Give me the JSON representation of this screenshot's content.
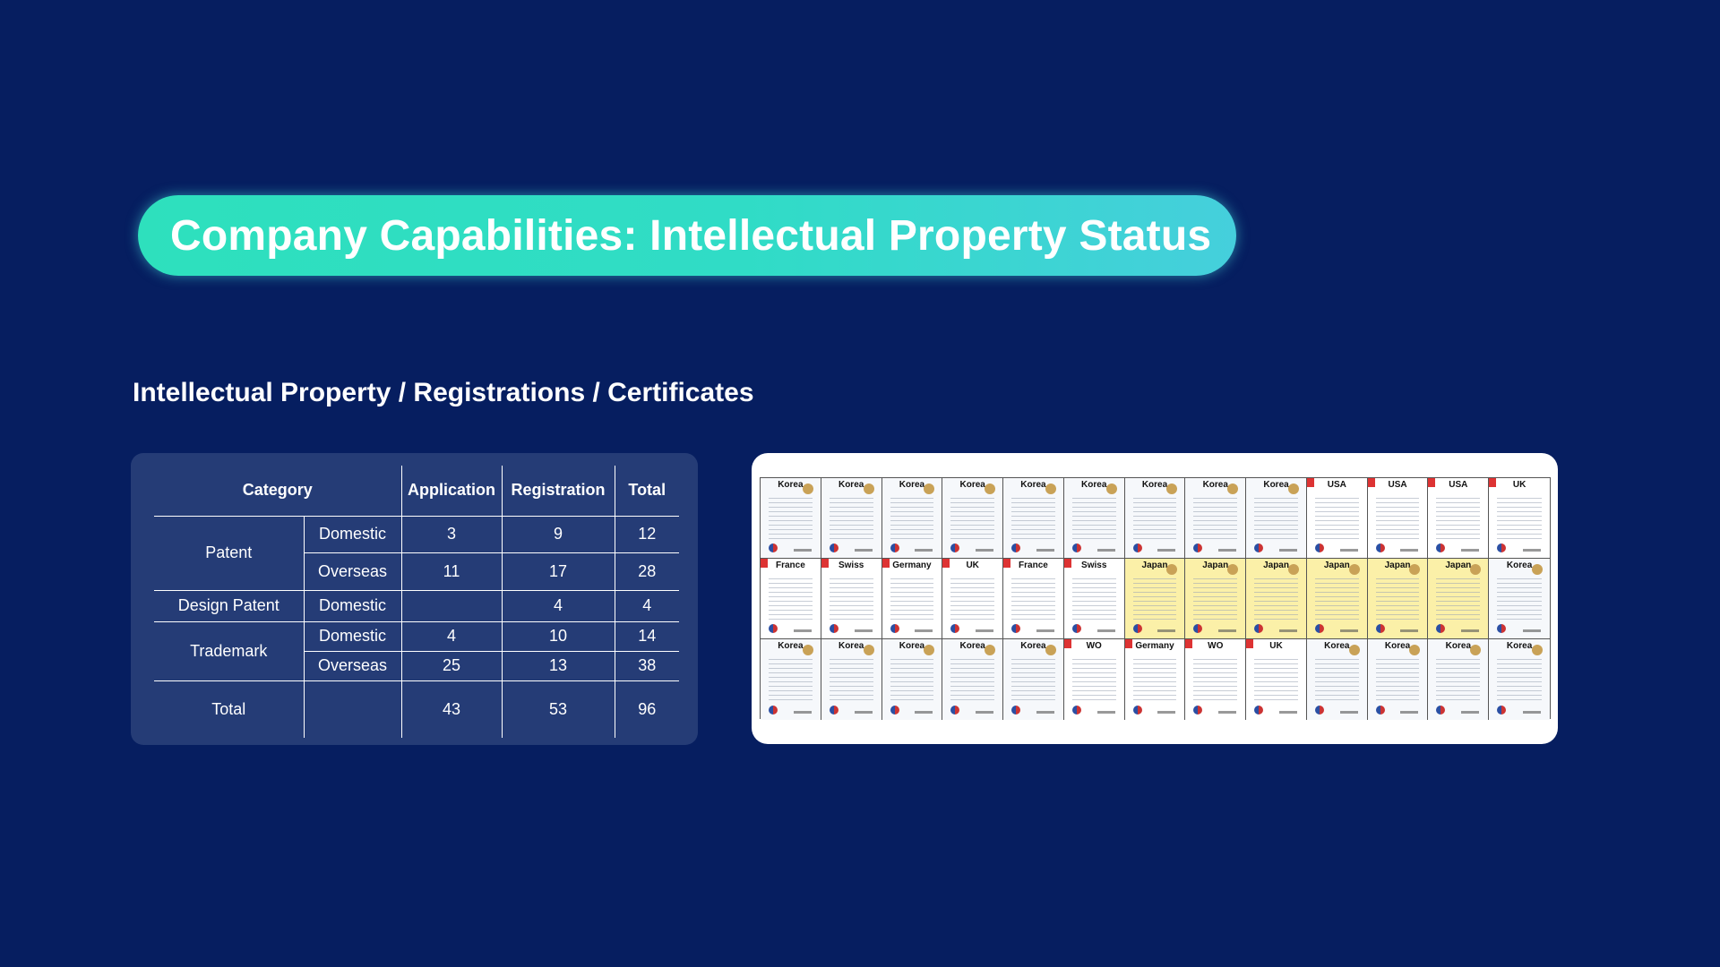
{
  "title": "Company Capabilities: Intellectual Property Status",
  "subtitle": "Intellectual Property / Registrations / Certificates",
  "table": {
    "headers": {
      "category": "Category",
      "application": "Application",
      "registration": "Registration",
      "total": "Total"
    },
    "rows": {
      "patent_label": "Patent",
      "patent_domestic": {
        "sub": "Domestic",
        "application": "3",
        "registration": "9",
        "total": "12"
      },
      "patent_overseas": {
        "sub": "Overseas",
        "application": "11",
        "registration": "17",
        "total": "28"
      },
      "design_label": "Design Patent",
      "design_domestic": {
        "sub": "Domestic",
        "application": "",
        "registration": "4",
        "total": "4"
      },
      "trademark_label": "Trademark",
      "trademark_domestic": {
        "sub": "Domestic",
        "application": "4",
        "registration": "10",
        "total": "14"
      },
      "trademark_overseas": {
        "sub": "Overseas",
        "application": "25",
        "registration": "13",
        "total": "38"
      },
      "total": {
        "label": "Total",
        "application": "43",
        "registration": "53",
        "total": "96"
      }
    }
  },
  "certificates": [
    {
      "country": "Korea",
      "style": "light"
    },
    {
      "country": "Korea",
      "style": "light"
    },
    {
      "country": "Korea",
      "style": "light"
    },
    {
      "country": "Korea",
      "style": "light"
    },
    {
      "country": "Korea",
      "style": "light"
    },
    {
      "country": "Korea",
      "style": "light"
    },
    {
      "country": "Korea",
      "style": "light"
    },
    {
      "country": "Korea",
      "style": "light"
    },
    {
      "country": "Korea",
      "style": "light"
    },
    {
      "country": "USA",
      "style": "white"
    },
    {
      "country": "USA",
      "style": "white"
    },
    {
      "country": "USA",
      "style": "white"
    },
    {
      "country": "UK",
      "style": "white"
    },
    {
      "country": "France",
      "style": "white"
    },
    {
      "country": "Swiss",
      "style": "white"
    },
    {
      "country": "Germany",
      "style": "white"
    },
    {
      "country": "UK",
      "style": "white"
    },
    {
      "country": "France",
      "style": "white"
    },
    {
      "country": "Swiss",
      "style": "white"
    },
    {
      "country": "Japan",
      "style": "yellow"
    },
    {
      "country": "Japan",
      "style": "yellow"
    },
    {
      "country": "Japan",
      "style": "yellow"
    },
    {
      "country": "Japan",
      "style": "yellow"
    },
    {
      "country": "Japan",
      "style": "yellow"
    },
    {
      "country": "Japan",
      "style": "yellow"
    },
    {
      "country": "Korea",
      "style": "light"
    },
    {
      "country": "Korea",
      "style": "light"
    },
    {
      "country": "Korea",
      "style": "light"
    },
    {
      "country": "Korea",
      "style": "light"
    },
    {
      "country": "Korea",
      "style": "light"
    },
    {
      "country": "Korea",
      "style": "light"
    },
    {
      "country": "WO",
      "style": "white"
    },
    {
      "country": "Germany",
      "style": "white"
    },
    {
      "country": "WO",
      "style": "white"
    },
    {
      "country": "UK",
      "style": "white"
    },
    {
      "country": "Korea",
      "style": "light"
    },
    {
      "country": "Korea",
      "style": "light"
    },
    {
      "country": "Korea",
      "style": "light"
    },
    {
      "country": "Korea",
      "style": "light"
    }
  ],
  "colors": {
    "background": "#061e60",
    "table_card": "#253c76",
    "pill_start": "#2ee0bd",
    "pill_end": "#45cfdc"
  }
}
